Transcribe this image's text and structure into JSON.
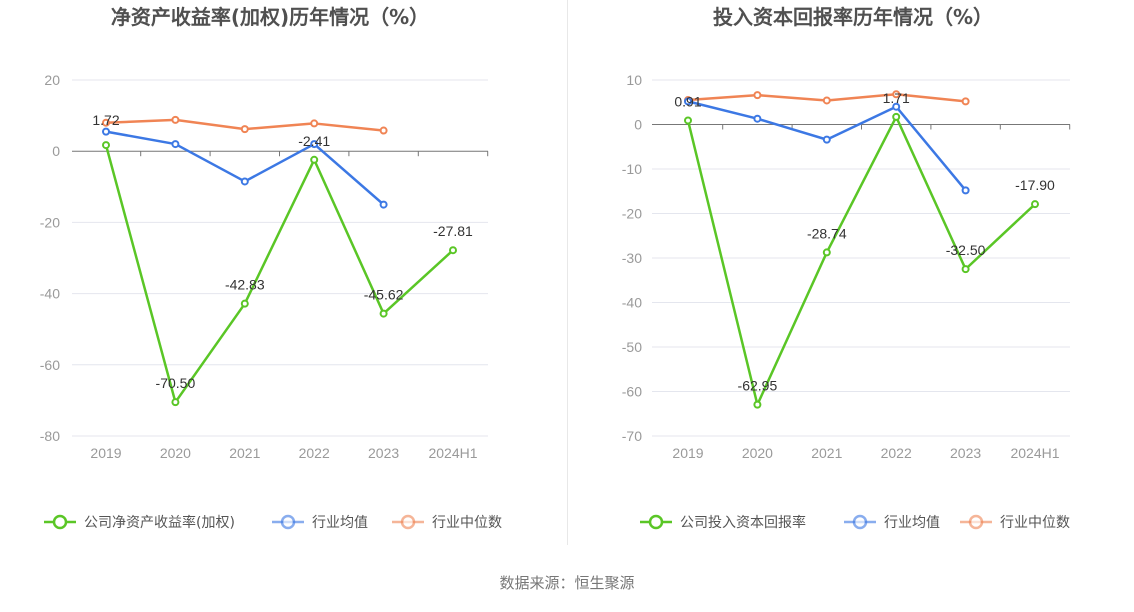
{
  "source": "数据来源：恒生聚源",
  "colors": {
    "company": "#5ac626",
    "industry_avg": "#3c78e4",
    "industry_median": "#f08454",
    "grid": "#e4e6ee",
    "axis": "#777777"
  },
  "chart_data": [
    {
      "type": "line",
      "title": "净资产收益率(加权)历年情况（%）",
      "categories": [
        "2019",
        "2020",
        "2021",
        "2022",
        "2023",
        "2024H1"
      ],
      "yticks": [
        "20",
        "0",
        "-20",
        "-40",
        "-60",
        "-80"
      ],
      "ylim": [
        -80,
        20
      ],
      "series": [
        {
          "name": "公司净资产收益率(加权)",
          "key": "company",
          "values": [
            1.72,
            -70.5,
            -42.83,
            -2.41,
            -45.62,
            -27.81
          ],
          "labels": [
            "1.72",
            "-70.50",
            "-42.83",
            "-2.41",
            "-45.62",
            "-27.81"
          ]
        },
        {
          "name": "行业均值",
          "key": "industry_avg",
          "values": [
            5.5,
            2.0,
            -8.5,
            2.0,
            -15.0,
            null
          ]
        },
        {
          "name": "行业中位数",
          "key": "industry_median",
          "values": [
            8.0,
            8.8,
            6.2,
            7.8,
            5.8,
            null
          ]
        }
      ]
    },
    {
      "type": "line",
      "title": "投入资本回报率历年情况（%）",
      "categories": [
        "2019",
        "2020",
        "2021",
        "2022",
        "2023",
        "2024H1"
      ],
      "yticks": [
        "10",
        "0",
        "-10",
        "-20",
        "-30",
        "-40",
        "-50",
        "-60",
        "-70"
      ],
      "ylim": [
        -70,
        10
      ],
      "series": [
        {
          "name": "公司投入资本回报率",
          "key": "company",
          "values": [
            0.91,
            -62.95,
            -28.74,
            1.71,
            -32.5,
            -17.9
          ],
          "labels": [
            "0.91",
            "-62.95",
            "-28.74",
            "1.71",
            "-32.50",
            "-17.90"
          ]
        },
        {
          "name": "行业均值",
          "key": "industry_avg",
          "values": [
            5.2,
            1.3,
            -3.4,
            4.0,
            -14.8,
            null
          ]
        },
        {
          "name": "行业中位数",
          "key": "industry_median",
          "values": [
            5.5,
            6.6,
            5.4,
            6.8,
            5.2,
            null
          ]
        }
      ]
    }
  ]
}
